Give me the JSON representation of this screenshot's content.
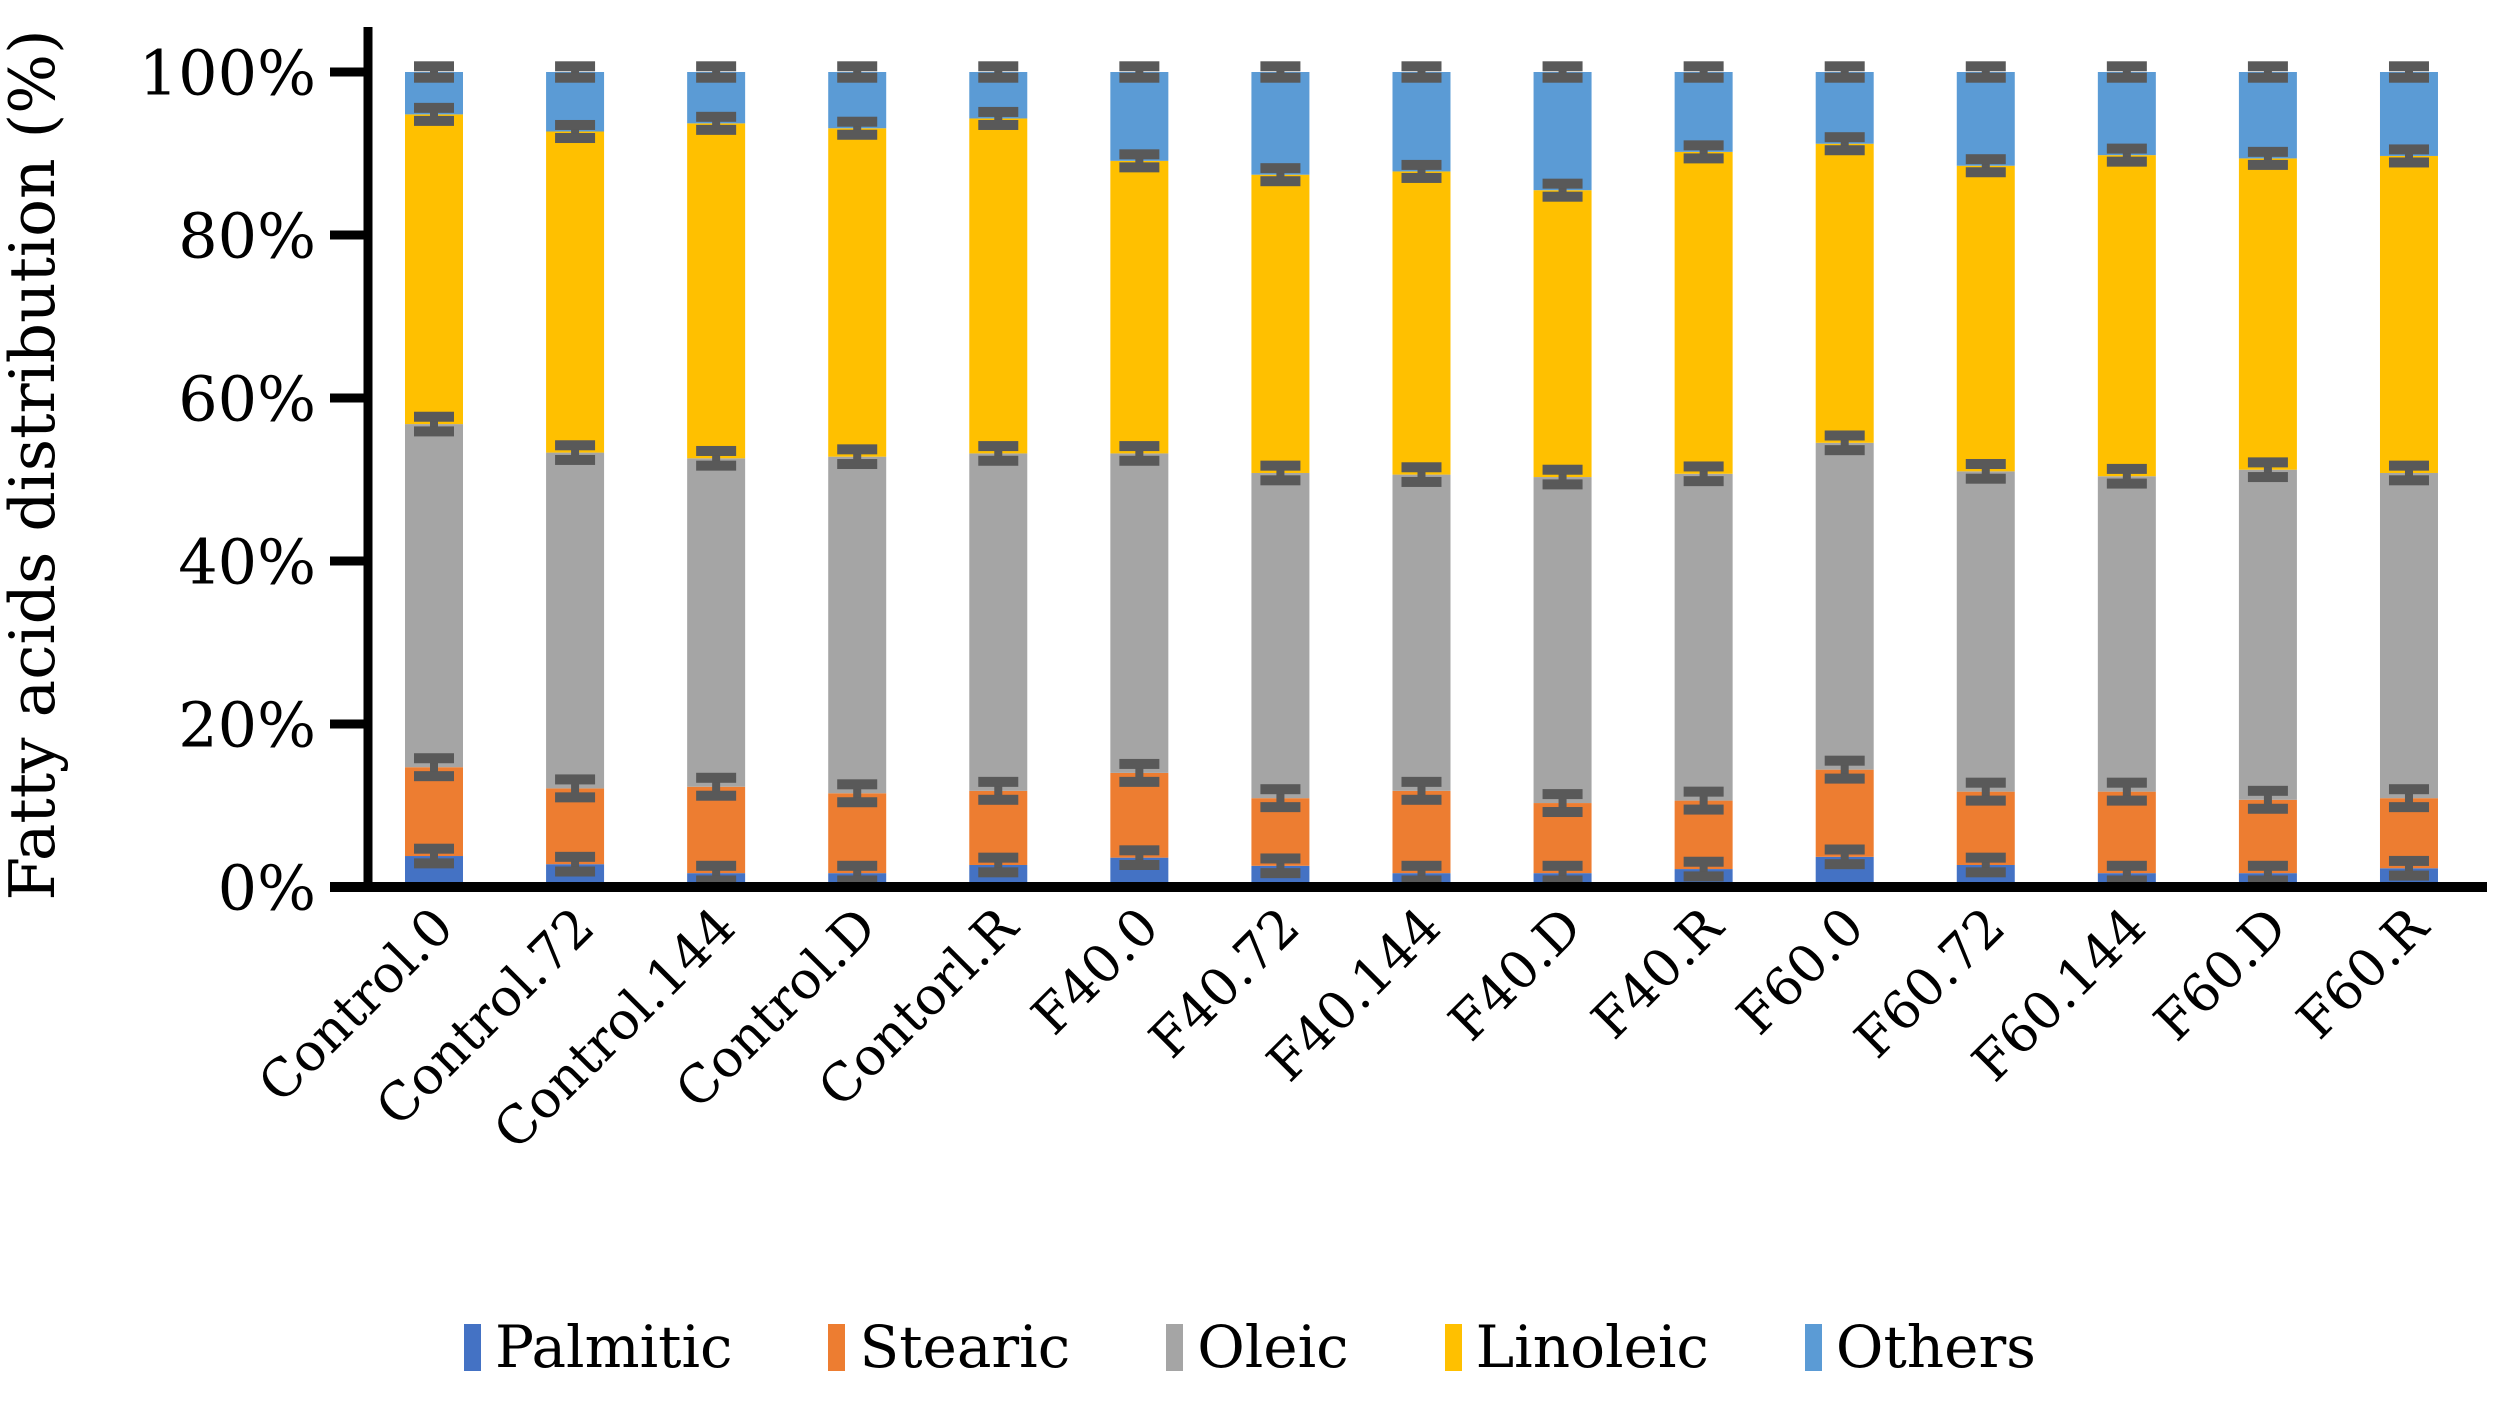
{
  "chart_data": {
    "type": "bar",
    "stacked": true,
    "ylabel": "Fatty acids distribution (%)",
    "ylim": [
      0,
      100
    ],
    "grid": false,
    "legend_position": "bottom",
    "x_label_rotation_deg": 45,
    "categories": [
      "Control.0",
      "Control.72",
      "Control.144",
      "Control.D",
      "Contorl.R",
      "F40.0",
      "F40.72",
      "F40.144",
      "F40.D",
      "F40.R",
      "F60.0",
      "F60.72",
      "F60.144",
      "F60.D",
      "F60.R"
    ],
    "y_ticks": [
      {
        "label": "0%",
        "value": 0
      },
      {
        "label": "20%",
        "value": 20
      },
      {
        "label": "40%",
        "value": 40
      },
      {
        "label": "60%",
        "value": 60
      },
      {
        "label": "80%",
        "value": 80
      },
      {
        "label": "100%",
        "value": 100
      }
    ],
    "series": [
      {
        "name": "Palmitic",
        "color": "#4472C4",
        "error_pct": 0.9,
        "values": [
          3.8,
          2.8,
          1.7,
          1.7,
          2.7,
          3.6,
          2.6,
          1.7,
          1.7,
          2.2,
          3.7,
          2.7,
          1.7,
          1.7,
          2.3
        ]
      },
      {
        "name": "Stearic",
        "color": "#ED7D31",
        "error_pct": 1.1,
        "values": [
          10.9,
          9.3,
          10.6,
          9.8,
          9.1,
          10.4,
          8.3,
          10.1,
          8.6,
          8.4,
          10.7,
          9.0,
          10.0,
          9.0,
          8.6
        ]
      },
      {
        "name": "Oleic",
        "color": "#A5A5A5",
        "error_pct": 0.9,
        "values": [
          42.1,
          41.2,
          40.3,
          41.3,
          41.4,
          39.2,
          39.9,
          38.8,
          40.0,
          40.1,
          40.1,
          39.3,
          38.7,
          40.5,
          39.9
        ]
      },
      {
        "name": "Linoleic",
        "color": "#FFC000",
        "error_pct": 0.8,
        "values": [
          38.0,
          39.4,
          41.1,
          40.3,
          41.1,
          35.9,
          36.6,
          37.2,
          35.2,
          39.5,
          36.7,
          37.5,
          39.4,
          38.2,
          38.9
        ]
      },
      {
        "name": "Others",
        "color": "#5B9BD5",
        "error_pct": 0.7,
        "values": [
          5.2,
          7.3,
          6.3,
          6.9,
          5.7,
          10.9,
          12.6,
          12.2,
          14.5,
          9.8,
          8.8,
          11.5,
          10.2,
          10.6,
          10.3
        ]
      }
    ],
    "error_bar_color": "#595959",
    "axis_color": "#000000"
  }
}
